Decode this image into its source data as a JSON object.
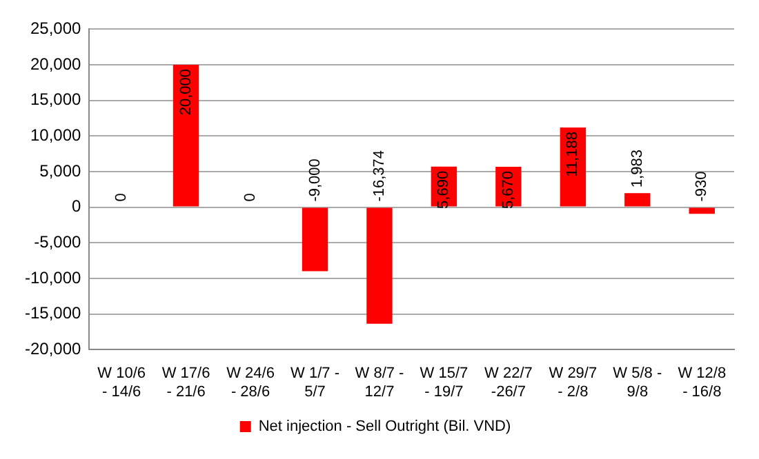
{
  "chart_data": {
    "type": "bar",
    "categories": [
      "W 10/6 - 14/6",
      "W 17/6 - 21/6",
      "W 24/6 - 28/6",
      "W 1/7 - 5/7",
      "W 8/7 - 12/7",
      "W 15/7 - 19/7",
      "W 22/7 -26/7",
      "W 29/7 - 2/8",
      "W 5/8 - 9/8",
      "W 12/8 - 16/8"
    ],
    "series": [
      {
        "name": "Net injection - Sell Outright (Bil. VND)",
        "color": "#ff0000",
        "values": [
          0,
          20000,
          0,
          -9000,
          -16374,
          5690,
          5670,
          11188,
          1983,
          -930
        ],
        "value_labels": [
          "0",
          "20,000",
          "0",
          "-9,000",
          "-16,374",
          "5,690",
          "5,670",
          "11,188",
          "1,983",
          "-930"
        ]
      }
    ],
    "ylim": [
      -20000,
      25000
    ],
    "yticks": [
      {
        "value": -20000,
        "label": "-20,000"
      },
      {
        "value": -15000,
        "label": "-15,000"
      },
      {
        "value": -10000,
        "label": "-10,000"
      },
      {
        "value": -5000,
        "label": "-5,000"
      },
      0,
      {
        "value": 5000,
        "label": "5,000"
      },
      {
        "value": 10000,
        "label": "10,000"
      },
      {
        "value": 15000,
        "label": "15,000"
      },
      {
        "value": 20000,
        "label": "20,000"
      },
      {
        "value": 25000,
        "label": "25,000"
      }
    ],
    "grid": "y",
    "legend": "bottom"
  }
}
